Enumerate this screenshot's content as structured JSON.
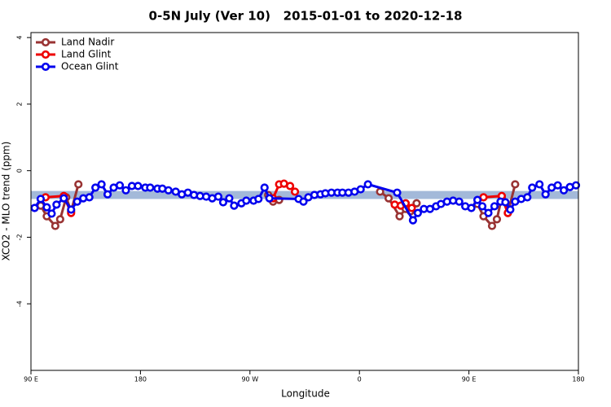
{
  "chart_data": {
    "type": "line",
    "title": "0-5N July (Ver 10)   2015-01-01 to 2020-12-18",
    "x_label": "Longitude",
    "y_label": "XCO2 - MLO trend (ppm)",
    "xlim": [
      90,
      540
    ],
    "xticks": [
      {
        "value": 90,
        "label": "90 E"
      },
      {
        "value": 180,
        "label": "180"
      },
      {
        "value": 270,
        "label": "90 W"
      },
      {
        "value": 360,
        "label": "0"
      },
      {
        "value": 450,
        "label": "90 E"
      },
      {
        "value": 540,
        "label": "180"
      }
    ],
    "ylim": [
      -6,
      4.15
    ],
    "yticks": [
      4,
      2,
      0,
      -2,
      -4
    ],
    "band": {
      "range": [
        -0.85,
        -0.61
      ],
      "color": "#a3b9d9"
    },
    "legend": "top-left",
    "series": [
      {
        "name": "Land Nadir",
        "color": "#993333",
        "x": [
          98,
          103,
          110,
          114,
          119,
          123,
          129,
          null,
          285,
          289,
          294,
          null,
          377,
          384,
          393,
          398,
          402,
          407,
          null,
          457,
          462,
          469,
          473,
          477,
          482,
          488
        ],
        "values": [
          -1.05,
          -1.37,
          -1.66,
          -1.46,
          -0.8,
          -1.22,
          -0.41,
          null,
          -0.73,
          -0.93,
          -0.88,
          null,
          -0.63,
          -0.83,
          -1.37,
          -1.15,
          -1.22,
          -0.98,
          null,
          -1.0,
          -1.37,
          -1.66,
          -1.46,
          -0.8,
          -1.27,
          -0.41
        ]
      },
      {
        "name": "Land Glint",
        "color": "#ee0000",
        "x": [
          102,
          117,
          123,
          null,
          289,
          294,
          298,
          303,
          307,
          null,
          389,
          394,
          398,
          403,
          null,
          462,
          477,
          482
        ],
        "values": [
          -0.8,
          -0.76,
          -1.27,
          null,
          -0.83,
          -0.41,
          -0.39,
          -0.46,
          -0.63,
          null,
          -1.02,
          -1.05,
          -0.98,
          -1.12,
          null,
          -0.8,
          -0.76,
          -1.27
        ]
      },
      {
        "name": "Ocean Glint",
        "color": "#0000ee",
        "x": [
          93,
          98,
          103,
          107,
          111,
          117,
          123,
          128,
          133,
          138,
          143,
          148,
          153,
          158,
          163,
          168,
          173,
          178,
          184,
          188,
          194,
          198,
          203,
          209,
          214,
          219,
          224,
          229,
          234,
          239,
          244,
          248,
          253,
          257,
          263,
          267,
          273,
          277,
          282,
          286,
          310,
          314,
          318,
          323,
          328,
          332,
          337,
          342,
          346,
          351,
          356,
          361,
          367,
          391,
          404,
          408,
          413,
          418,
          423,
          427,
          432,
          437,
          442,
          447,
          452,
          457,
          461,
          466,
          471,
          476,
          480,
          484,
          488,
          493,
          498,
          502,
          508,
          513,
          518,
          523,
          528,
          533,
          538
        ],
        "values": [
          -1.12,
          -0.85,
          -1.1,
          -1.29,
          -1.02,
          -0.83,
          -1.17,
          -0.93,
          -0.83,
          -0.8,
          -0.51,
          -0.41,
          -0.71,
          -0.51,
          -0.44,
          -0.59,
          -0.46,
          -0.46,
          -0.51,
          -0.51,
          -0.54,
          -0.54,
          -0.59,
          -0.63,
          -0.71,
          -0.66,
          -0.73,
          -0.76,
          -0.78,
          -0.83,
          -0.78,
          -0.95,
          -0.83,
          -1.05,
          -0.98,
          -0.9,
          -0.9,
          -0.85,
          -0.51,
          -0.83,
          -0.85,
          -0.93,
          -0.8,
          -0.73,
          -0.71,
          -0.68,
          -0.66,
          -0.66,
          -0.66,
          -0.66,
          -0.63,
          -0.56,
          -0.41,
          -0.66,
          -1.49,
          -1.27,
          -1.15,
          -1.15,
          -1.07,
          -1.0,
          -0.93,
          -0.9,
          -0.93,
          -1.07,
          -1.12,
          -0.88,
          -1.07,
          -1.27,
          -1.07,
          -0.93,
          -0.95,
          -1.17,
          -0.93,
          -0.85,
          -0.8,
          -0.51,
          -0.41,
          -0.71,
          -0.51,
          -0.44,
          -0.59,
          -0.49,
          -0.44
        ]
      }
    ]
  }
}
